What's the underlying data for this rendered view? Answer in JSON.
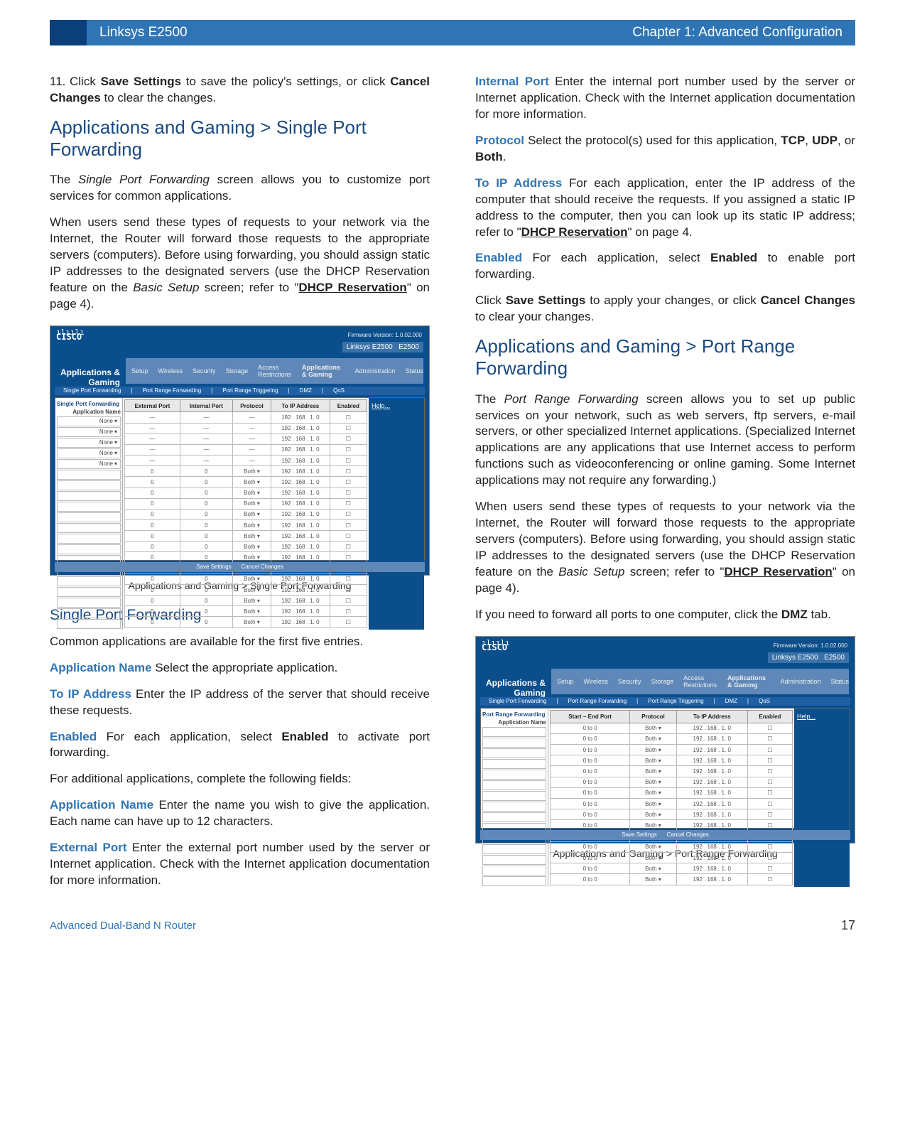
{
  "header": {
    "product": "Linksys E2500",
    "chapter": "Chapter 1: Advanced Configuration"
  },
  "step": {
    "num": "11.",
    "text_a": "Click ",
    "bold_a": "Save Settings",
    "text_b": " to save the policy's settings, or click ",
    "bold_b": "Cancel Changes",
    "text_c": " to clear the changes."
  },
  "sec1_title": "Applications and Gaming > Single Port Forwarding",
  "sec1_p1_a": "The ",
  "sec1_p1_i": "Single Port Forwarding",
  "sec1_p1_b": " screen allows you to customize port services for common applications.",
  "sec1_p2_a": "When users send these types of requests to your network via the Internet, the Router will forward those requests to the appropriate servers (computers). Before using forwarding, you should assign static IP addresses to the designated servers (use the DHCP Reservation feature on the ",
  "sec1_p2_i": "Basic Setup",
  "sec1_p2_b": " screen; refer to \"",
  "sec1_p2_link": "DHCP Reservation",
  "sec1_p2_c": "\" on page 4).",
  "cap1": "Applications and Gaming > Single Port Forwarding",
  "sub1_title": "Single Port Forwarding",
  "sub1_p1": "Common applications are available for the first five entries.",
  "f_appname": "Application Name",
  "f_appname_t1": "  Select the appropriate application.",
  "f_toip": "To IP Address",
  "f_toip_t1": "  Enter the IP address of the server that should receive these requests.",
  "f_enabled": "Enabled",
  "f_enabled_t1_a": "  For each application, select ",
  "f_enabled_t1_b": "Enabled",
  "f_enabled_t1_c": " to activate port forwarding.",
  "sub1_p2": "For additional applications, complete the following fields:",
  "f_appname_t2": "  Enter the name you wish to give the application. Each name can have up to 12 characters.",
  "f_ext": "External Port",
  "f_ext_t": "  Enter the external port number used by the server or Internet application. Check with the Internet application documentation for more information.",
  "f_int": "Internal Port",
  "f_int_t": "  Enter the internal port number used by the server or Internet application. Check with the Internet application documentation for more information.",
  "f_proto": "Protocol",
  "f_proto_t_a": "  Select the protocol(s) used for this application, ",
  "f_proto_b1": "TCP",
  "f_proto_sep1": ", ",
  "f_proto_b2": "UDP",
  "f_proto_sep2": ", or ",
  "f_proto_b3": "Both",
  "f_proto_end": ".",
  "f_toip_t2_a": "  For each application, enter the IP address of the computer that should receive the requests. If you assigned a static IP address to the computer, then you can look up its static IP address; refer to \"",
  "f_toip_t2_link": "DHCP Reservation",
  "f_toip_t2_b": "\" on page 4.",
  "f_enabled_t2_a": "  For each application, select ",
  "f_enabled_t2_b": "Enabled",
  "f_enabled_t2_c": " to enable port forwarding.",
  "save_p_a": "Click ",
  "save_p_b1": "Save Settings",
  "save_p_mid": " to apply your changes, or click ",
  "save_p_b2": "Cancel Changes",
  "save_p_end": " to clear your changes.",
  "sec2_title": "Applications and Gaming > Port Range Forwarding",
  "sec2_p1_a": "The ",
  "sec2_p1_i": "Port Range Forwarding",
  "sec2_p1_b": " screen allows you to set up public services on your network, such as web servers, ftp servers, e-mail servers, or other specialized Internet applications. (Specialized Internet applications are any applications that use Internet access to perform functions such as videoconferencing or online gaming. Some Internet applications may not require any forwarding.)",
  "sec2_p2_a": "When users send these types of requests to your network via the Internet, the Router will forward those requests to the appropriate servers (computers). Before using forwarding, you should assign static IP addresses to the designated servers (use the DHCP Reservation feature on the ",
  "sec2_p2_i": "Basic Setup",
  "sec2_p2_b": " screen; refer to \"",
  "sec2_p2_link": "DHCP Reservation",
  "sec2_p2_c": "\" on page 4).",
  "sec2_p3_a": "If you need to forward all ports to one computer, click the ",
  "sec2_p3_b": "DMZ",
  "sec2_p3_c": " tab.",
  "cap2": "Applications and Gaming > Port Range Forwarding",
  "footer": {
    "product_line": "Advanced Dual-Band N Router",
    "page_no": "17"
  },
  "ui": {
    "brand_top": "ılıılı",
    "brand": "CISCO",
    "fw": "Firmware Version: 1.0.02.000",
    "linksys_tab": "Linksys E2500",
    "model_tab": "E2500",
    "left_title": "Applications & Gaming",
    "nav_items": [
      "Setup",
      "Wireless",
      "Security",
      "Storage",
      "Access Restrictions",
      "Applications & Gaming",
      "Administration",
      "Status"
    ],
    "ribbon1": [
      "Single Port Forwarding",
      "Port Range Forwarding",
      "Port Range Triggering",
      "DMZ",
      "QoS"
    ],
    "side1": "Single Port Forwarding",
    "side_row": "Application Name",
    "none_opt": "None",
    "help": "Help...",
    "cols1": [
      "External Port",
      "Internal Port",
      "Protocol",
      "To IP Address",
      "Enabled"
    ],
    "dash": "—",
    "both": "Both ▾",
    "ipA": "192 . 168 . 1. 0",
    "btn_save": "Save Settings",
    "btn_cancel": "Cancel Changes",
    "side2": "Port Range Forwarding",
    "cols2": [
      "Start ~ End Port",
      "Protocol",
      "To IP Address",
      "Enabled"
    ],
    "to": "to",
    "zero": "0"
  }
}
